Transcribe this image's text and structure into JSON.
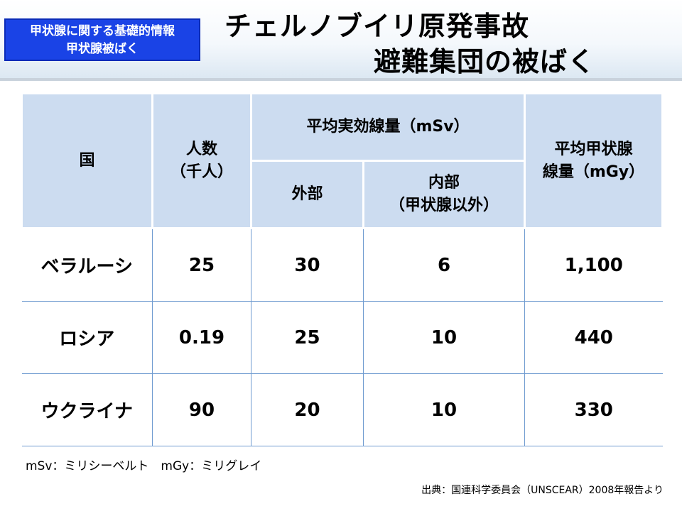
{
  "badge": {
    "line1": "甲状腺に関する基礎的情報",
    "line2": "甲状腺被ばく"
  },
  "title": {
    "line1": "チェルノブイリ原発事故",
    "line2": "避難集団の被ばく"
  },
  "table": {
    "headers": {
      "country": "国",
      "population_line1": "人数",
      "population_line2": "（千人）",
      "effective_dose": "平均実効線量（mSv）",
      "external": "外部",
      "internal_line1": "内部",
      "internal_line2": "（甲状腺以外）",
      "thyroid_line1": "平均甲状腺",
      "thyroid_line2": "線量（mGy）"
    },
    "rows": [
      {
        "country": "ベラルーシ",
        "population": "25",
        "external": "30",
        "internal": "6",
        "thyroid": "1,100"
      },
      {
        "country": "ロシア",
        "population": "0.19",
        "external": "25",
        "internal": "10",
        "thyroid": "440"
      },
      {
        "country": "ウクライナ",
        "population": "90",
        "external": "20",
        "internal": "10",
        "thyroid": "330"
      }
    ]
  },
  "note": "mSv：ミリシーベルト　mGy：ミリグレイ",
  "source": "出典：国連科学委員会（UNSCEAR）2008年報告より",
  "colors": {
    "badge": "#1a43e6",
    "header_cell": "#ccdcf0",
    "grid_line": "#6f9bd0"
  }
}
